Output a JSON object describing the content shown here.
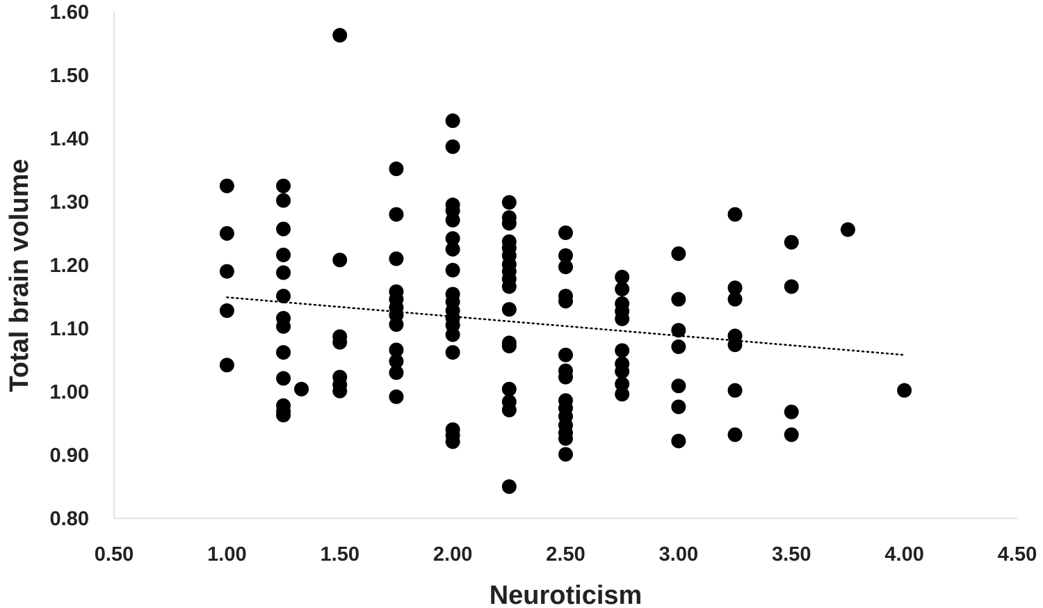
{
  "chart_data": {
    "type": "scatter",
    "title": "",
    "xlabel": "Neuroticism",
    "ylabel": "Total brain volume",
    "xlim": [
      0.5,
      4.5
    ],
    "ylim": [
      0.8,
      1.6
    ],
    "x_ticks": [
      "0.50",
      "1.00",
      "1.50",
      "2.00",
      "2.50",
      "3.00",
      "3.50",
      "4.00",
      "4.50"
    ],
    "y_ticks": [
      "0.80",
      "0.90",
      "1.00",
      "1.10",
      "1.20",
      "1.30",
      "1.40",
      "1.50",
      "1.60"
    ],
    "grid": false,
    "legend": "none",
    "marker_color": "#000000",
    "trendline": {
      "style": "dotted",
      "points": [
        [
          1.0,
          1.149
        ],
        [
          4.0,
          1.058
        ]
      ]
    },
    "points": [
      [
        1.0,
        1.325
      ],
      [
        1.0,
        1.25
      ],
      [
        1.0,
        1.19
      ],
      [
        1.0,
        1.128
      ],
      [
        1.0,
        1.042
      ],
      [
        1.25,
        1.325
      ],
      [
        1.25,
        1.302
      ],
      [
        1.25,
        1.257
      ],
      [
        1.25,
        1.216
      ],
      [
        1.25,
        1.188
      ],
      [
        1.25,
        1.151
      ],
      [
        1.25,
        1.116
      ],
      [
        1.25,
        1.103
      ],
      [
        1.25,
        1.062
      ],
      [
        1.25,
        1.021
      ],
      [
        1.25,
        0.978
      ],
      [
        1.25,
        0.969
      ],
      [
        1.25,
        0.963
      ],
      [
        1.33,
        1.004
      ],
      [
        1.5,
        1.563
      ],
      [
        1.5,
        1.208
      ],
      [
        1.5,
        1.087
      ],
      [
        1.5,
        1.078
      ],
      [
        1.5,
        1.023
      ],
      [
        1.5,
        1.011
      ],
      [
        1.5,
        1.001
      ],
      [
        1.75,
        1.352
      ],
      [
        1.75,
        1.28
      ],
      [
        1.75,
        1.21
      ],
      [
        1.75,
        1.158
      ],
      [
        1.75,
        1.146
      ],
      [
        1.75,
        1.133
      ],
      [
        1.75,
        1.121
      ],
      [
        1.75,
        1.106
      ],
      [
        1.75,
        1.066
      ],
      [
        1.75,
        1.048
      ],
      [
        1.75,
        1.03
      ],
      [
        1.75,
        0.992
      ],
      [
        2.0,
        1.428
      ],
      [
        2.0,
        1.387
      ],
      [
        2.0,
        1.295
      ],
      [
        2.0,
        1.286
      ],
      [
        2.0,
        1.271
      ],
      [
        2.0,
        1.242
      ],
      [
        2.0,
        1.225
      ],
      [
        2.0,
        1.192
      ],
      [
        2.0,
        1.154
      ],
      [
        2.0,
        1.142
      ],
      [
        2.0,
        1.128
      ],
      [
        2.0,
        1.116
      ],
      [
        2.0,
        1.105
      ],
      [
        2.0,
        1.09
      ],
      [
        2.0,
        1.062
      ],
      [
        2.0,
        0.94
      ],
      [
        2.0,
        0.931
      ],
      [
        2.0,
        0.921
      ],
      [
        2.25,
        1.299
      ],
      [
        2.25,
        1.275
      ],
      [
        2.25,
        1.266
      ],
      [
        2.25,
        1.237
      ],
      [
        2.25,
        1.227
      ],
      [
        2.25,
        1.215
      ],
      [
        2.25,
        1.201
      ],
      [
        2.25,
        1.19
      ],
      [
        2.25,
        1.178
      ],
      [
        2.25,
        1.166
      ],
      [
        2.25,
        1.13
      ],
      [
        2.25,
        1.077
      ],
      [
        2.25,
        1.072
      ],
      [
        2.25,
        1.004
      ],
      [
        2.25,
        0.984
      ],
      [
        2.25,
        0.971
      ],
      [
        2.25,
        0.85
      ],
      [
        2.5,
        1.251
      ],
      [
        2.5,
        1.215
      ],
      [
        2.5,
        1.197
      ],
      [
        2.5,
        1.151
      ],
      [
        2.5,
        1.143
      ],
      [
        2.5,
        1.058
      ],
      [
        2.5,
        1.033
      ],
      [
        2.5,
        1.023
      ],
      [
        2.5,
        0.986
      ],
      [
        2.5,
        0.974
      ],
      [
        2.5,
        0.961
      ],
      [
        2.5,
        0.947
      ],
      [
        2.5,
        0.935
      ],
      [
        2.5,
        0.926
      ],
      [
        2.5,
        0.901
      ],
      [
        2.75,
        1.181
      ],
      [
        2.75,
        1.162
      ],
      [
        2.75,
        1.139
      ],
      [
        2.75,
        1.127
      ],
      [
        2.75,
        1.115
      ],
      [
        2.75,
        1.065
      ],
      [
        2.75,
        1.044
      ],
      [
        2.75,
        1.032
      ],
      [
        2.75,
        1.012
      ],
      [
        2.75,
        0.996
      ],
      [
        3.0,
        1.218
      ],
      [
        3.0,
        1.146
      ],
      [
        3.0,
        1.097
      ],
      [
        3.0,
        1.071
      ],
      [
        3.0,
        1.009
      ],
      [
        3.0,
        0.976
      ],
      [
        3.0,
        0.922
      ],
      [
        3.25,
        1.28
      ],
      [
        3.25,
        1.164
      ],
      [
        3.25,
        1.146
      ],
      [
        3.25,
        1.088
      ],
      [
        3.25,
        1.074
      ],
      [
        3.25,
        1.002
      ],
      [
        3.25,
        0.932
      ],
      [
        3.5,
        1.236
      ],
      [
        3.5,
        1.166
      ],
      [
        3.5,
        0.968
      ],
      [
        3.5,
        0.932
      ],
      [
        3.75,
        1.256
      ],
      [
        4.0,
        1.002
      ]
    ]
  }
}
